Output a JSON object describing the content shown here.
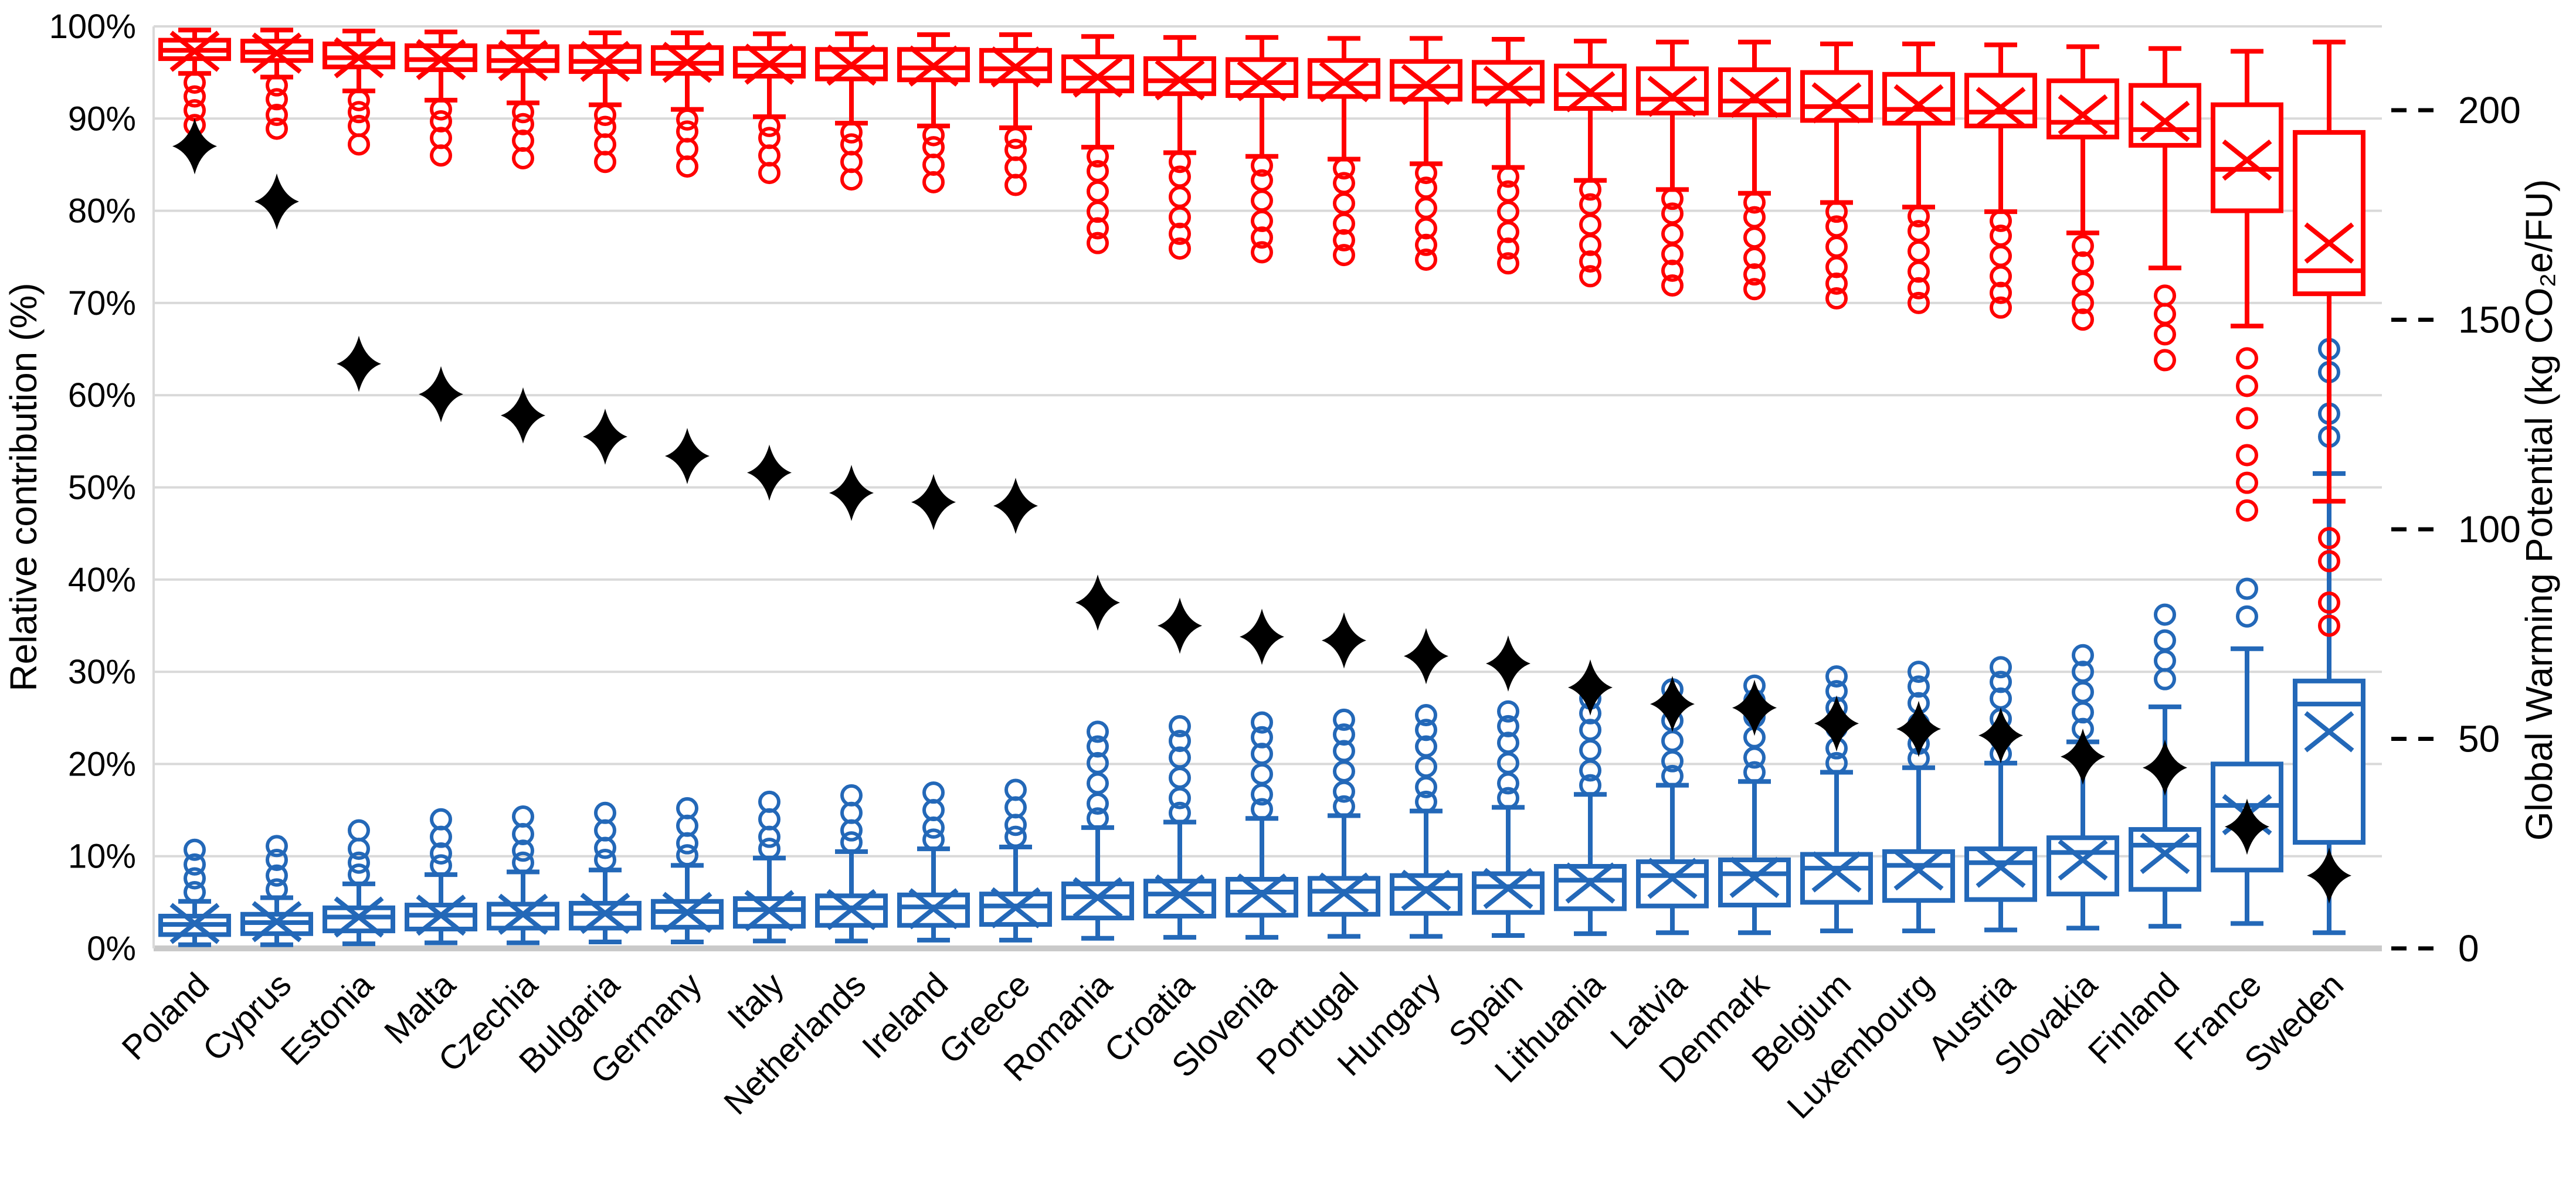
{
  "chart_data": {
    "type": "box",
    "title": "",
    "grid": true,
    "legend": "none",
    "colors": {
      "red_series": "#FF0000",
      "blue_series": "#2368B8",
      "diamond": "#000000",
      "gridline": "#D9D9D9",
      "baseline": "#C9C9C9"
    },
    "left_axis": {
      "label": "Relative contribution (%)",
      "min": 0,
      "max": 100,
      "tick_values": [
        0,
        10,
        20,
        30,
        40,
        50,
        60,
        70,
        80,
        90,
        100
      ],
      "tick_labels": [
        "0%",
        "10%",
        "20%",
        "30%",
        "40%",
        "50%",
        "60%",
        "70%",
        "80%",
        "90%",
        "100%"
      ]
    },
    "right_axis": {
      "label": "Global Warming Potential (kg CO₂e/FU)",
      "min": 0,
      "max": 220,
      "units_per_left_pct": 2.2,
      "tick_values": [
        200,
        150,
        100,
        50,
        0
      ],
      "tick_labels": [
        "200",
        "150",
        "100",
        "50",
        "0"
      ]
    },
    "series": [
      {
        "name": "Red box plots (relative contribution, upper group)",
        "color": "#FF0000"
      },
      {
        "name": "Blue box plots (relative contribution, lower group)",
        "color": "#2368B8"
      },
      {
        "name": "Black diamonds (Global Warming Potential, right axis)",
        "color": "#000000"
      }
    ],
    "countries": [
      {
        "name": "Poland",
        "red": {
          "low": 94.9,
          "q1": 96.5,
          "median": 97.4,
          "q3": 98.5,
          "high": 99.6,
          "mean": 97.3,
          "outliers": [
            93.9,
            92.4,
            90.9,
            89.3
          ]
        },
        "blue": {
          "low": 0.4,
          "q1": 1.5,
          "median": 2.6,
          "q3": 3.5,
          "high": 5.1,
          "mean": 2.7,
          "outliers": [
            6.1,
            7.6,
            9.1,
            10.7
          ]
        },
        "gwp_share_pct": 87.0,
        "gwp_value": 191
      },
      {
        "name": "Cyprus",
        "red": {
          "low": 94.5,
          "q1": 96.3,
          "median": 97.2,
          "q3": 98.4,
          "high": 99.6,
          "mean": 97.1,
          "outliers": [
            93.6,
            92.1,
            90.4,
            88.9
          ]
        },
        "blue": {
          "low": 0.4,
          "q1": 1.6,
          "median": 2.8,
          "q3": 3.7,
          "high": 5.5,
          "mean": 2.9,
          "outliers": [
            6.4,
            7.9,
            9.6,
            11.1
          ]
        },
        "gwp_share_pct": 81.0,
        "gwp_value": 178
      },
      {
        "name": "Estonia",
        "red": {
          "low": 93.0,
          "q1": 95.6,
          "median": 96.6,
          "q3": 98.1,
          "high": 99.5,
          "mean": 96.6,
          "outliers": [
            92.0,
            90.7,
            89.2,
            87.2
          ]
        },
        "blue": {
          "low": 0.5,
          "q1": 1.9,
          "median": 3.4,
          "q3": 4.4,
          "high": 7.0,
          "mean": 3.4,
          "outliers": [
            8.0,
            9.3,
            10.8,
            12.8
          ]
        },
        "gwp_share_pct": 63.4,
        "gwp_value": 139
      },
      {
        "name": "Malta",
        "red": {
          "low": 92.0,
          "q1": 95.3,
          "median": 96.4,
          "q3": 97.9,
          "high": 99.4,
          "mean": 96.4,
          "outliers": [
            91.0,
            89.7,
            87.9,
            86.0
          ]
        },
        "blue": {
          "low": 0.6,
          "q1": 2.1,
          "median": 3.6,
          "q3": 4.7,
          "high": 8.0,
          "mean": 3.6,
          "outliers": [
            9.0,
            10.3,
            12.1,
            14.0
          ]
        },
        "gwp_share_pct": 60.1,
        "gwp_value": 132
      },
      {
        "name": "Czechia",
        "red": {
          "low": 91.7,
          "q1": 95.2,
          "median": 96.3,
          "q3": 97.8,
          "high": 99.4,
          "mean": 96.3,
          "outliers": [
            90.7,
            89.4,
            87.6,
            85.7
          ]
        },
        "blue": {
          "low": 0.6,
          "q1": 2.2,
          "median": 3.7,
          "q3": 4.8,
          "high": 8.3,
          "mean": 3.7,
          "outliers": [
            9.3,
            10.6,
            12.4,
            14.3
          ]
        },
        "gwp_share_pct": 57.8,
        "gwp_value": 127
      },
      {
        "name": "Bulgaria",
        "red": {
          "low": 91.5,
          "q1": 95.1,
          "median": 96.2,
          "q3": 97.8,
          "high": 99.3,
          "mean": 96.2,
          "outliers": [
            90.4,
            89.1,
            87.2,
            85.3
          ]
        },
        "blue": {
          "low": 0.7,
          "q1": 2.2,
          "median": 3.8,
          "q3": 4.9,
          "high": 8.5,
          "mean": 3.8,
          "outliers": [
            9.6,
            10.9,
            12.8,
            14.7
          ]
        },
        "gwp_share_pct": 55.5,
        "gwp_value": 122
      },
      {
        "name": "Germany",
        "red": {
          "low": 91.0,
          "q1": 94.9,
          "median": 96.0,
          "q3": 97.7,
          "high": 99.3,
          "mean": 96.1,
          "outliers": [
            89.9,
            88.6,
            86.7,
            84.8
          ]
        },
        "blue": {
          "low": 0.7,
          "q1": 2.3,
          "median": 4.0,
          "q3": 5.1,
          "high": 9.0,
          "mean": 3.9,
          "outliers": [
            10.1,
            11.4,
            13.3,
            15.2
          ]
        },
        "gwp_share_pct": 53.4,
        "gwp_value": 117
      },
      {
        "name": "Italy",
        "red": {
          "low": 90.2,
          "q1": 94.6,
          "median": 95.8,
          "q3": 97.6,
          "high": 99.2,
          "mean": 95.9,
          "outliers": [
            89.2,
            87.9,
            86.0,
            84.1
          ]
        },
        "blue": {
          "low": 0.8,
          "q1": 2.4,
          "median": 4.2,
          "q3": 5.4,
          "high": 9.8,
          "mean": 4.1,
          "outliers": [
            10.8,
            12.1,
            14.0,
            15.9
          ]
        },
        "gwp_share_pct": 51.6,
        "gwp_value": 114
      },
      {
        "name": "Netherlands",
        "red": {
          "low": 89.5,
          "q1": 94.3,
          "median": 95.6,
          "q3": 97.5,
          "high": 99.2,
          "mean": 95.8,
          "outliers": [
            88.5,
            87.2,
            85.3,
            83.4
          ]
        },
        "blue": {
          "low": 0.8,
          "q1": 2.5,
          "median": 4.4,
          "q3": 5.7,
          "high": 10.5,
          "mean": 4.2,
          "outliers": [
            11.5,
            12.8,
            14.7,
            16.6
          ]
        },
        "gwp_share_pct": 49.4,
        "gwp_value": 109
      },
      {
        "name": "Ireland",
        "red": {
          "low": 89.2,
          "q1": 94.2,
          "median": 95.5,
          "q3": 97.5,
          "high": 99.1,
          "mean": 95.7,
          "outliers": [
            88.2,
            86.9,
            85.0,
            83.1
          ]
        },
        "blue": {
          "low": 0.9,
          "q1": 2.5,
          "median": 4.5,
          "q3": 5.8,
          "high": 10.8,
          "mean": 4.3,
          "outliers": [
            11.8,
            13.1,
            15.0,
            16.9
          ]
        },
        "gwp_share_pct": 48.4,
        "gwp_value": 106
      },
      {
        "name": "Greece",
        "red": {
          "low": 89.0,
          "q1": 94.1,
          "median": 95.4,
          "q3": 97.4,
          "high": 99.1,
          "mean": 95.6,
          "outliers": [
            87.9,
            86.6,
            84.7,
            82.8
          ]
        },
        "blue": {
          "low": 0.9,
          "q1": 2.6,
          "median": 4.6,
          "q3": 5.9,
          "high": 11.0,
          "mean": 4.4,
          "outliers": [
            12.1,
            13.4,
            15.3,
            17.2
          ]
        },
        "gwp_share_pct": 48.0,
        "gwp_value": 106
      },
      {
        "name": "Romania",
        "red": {
          "low": 86.9,
          "q1": 93.0,
          "median": 94.4,
          "q3": 96.7,
          "high": 98.9,
          "mean": 94.5,
          "outliers": [
            85.9,
            84.3,
            82.1,
            79.9,
            78.1,
            76.5
          ]
        },
        "blue": {
          "low": 1.1,
          "q1": 3.3,
          "median": 5.6,
          "q3": 7.0,
          "high": 13.1,
          "mean": 5.5,
          "outliers": [
            14.1,
            15.7,
            17.9,
            20.1,
            21.9,
            23.5
          ]
        },
        "gwp_share_pct": 37.5,
        "gwp_value": 83
      },
      {
        "name": "Croatia",
        "red": {
          "low": 86.3,
          "q1": 92.7,
          "median": 94.1,
          "q3": 96.5,
          "high": 98.8,
          "mean": 94.2,
          "outliers": [
            85.3,
            83.7,
            81.5,
            79.3,
            77.5,
            75.9
          ]
        },
        "blue": {
          "low": 1.2,
          "q1": 3.5,
          "median": 5.9,
          "q3": 7.3,
          "high": 13.7,
          "mean": 5.8,
          "outliers": [
            14.7,
            16.3,
            18.5,
            20.7,
            22.5,
            24.1
          ]
        },
        "gwp_share_pct": 35.0,
        "gwp_value": 77
      },
      {
        "name": "Slovenia",
        "red": {
          "low": 85.9,
          "q1": 92.5,
          "median": 93.9,
          "q3": 96.4,
          "high": 98.8,
          "mean": 94.1,
          "outliers": [
            84.9,
            83.3,
            81.1,
            78.9,
            77.1,
            75.5
          ]
        },
        "blue": {
          "low": 1.2,
          "q1": 3.6,
          "median": 6.1,
          "q3": 7.5,
          "high": 14.1,
          "mean": 5.9,
          "outliers": [
            15.1,
            16.7,
            18.9,
            21.1,
            22.9,
            24.5
          ]
        },
        "gwp_share_pct": 33.8,
        "gwp_value": 74
      },
      {
        "name": "Portugal",
        "red": {
          "low": 85.6,
          "q1": 92.4,
          "median": 93.8,
          "q3": 96.3,
          "high": 98.7,
          "mean": 94.0,
          "outliers": [
            84.6,
            83.0,
            80.8,
            78.6,
            76.8,
            75.2
          ]
        },
        "blue": {
          "low": 1.3,
          "q1": 3.7,
          "median": 6.2,
          "q3": 7.6,
          "high": 14.4,
          "mean": 6.0,
          "outliers": [
            15.4,
            17.0,
            19.2,
            21.4,
            23.2,
            24.8
          ]
        },
        "gwp_share_pct": 33.4,
        "gwp_value": 73
      },
      {
        "name": "Hungary",
        "red": {
          "low": 85.1,
          "q1": 92.1,
          "median": 93.5,
          "q3": 96.2,
          "high": 98.7,
          "mean": 93.7,
          "outliers": [
            84.1,
            82.5,
            80.3,
            78.1,
            76.3,
            74.7
          ]
        },
        "blue": {
          "low": 1.3,
          "q1": 3.8,
          "median": 6.5,
          "q3": 7.9,
          "high": 14.9,
          "mean": 6.3,
          "outliers": [
            15.9,
            17.5,
            19.7,
            21.9,
            23.7,
            25.3
          ]
        },
        "gwp_share_pct": 31.7,
        "gwp_value": 70
      },
      {
        "name": "Spain",
        "red": {
          "low": 84.7,
          "q1": 91.9,
          "median": 93.3,
          "q3": 96.1,
          "high": 98.6,
          "mean": 93.5,
          "outliers": [
            83.7,
            82.1,
            79.9,
            77.7,
            75.9,
            74.3
          ]
        },
        "blue": {
          "low": 1.4,
          "q1": 3.9,
          "median": 6.7,
          "q3": 8.1,
          "high": 15.3,
          "mean": 6.5,
          "outliers": [
            16.3,
            17.9,
            20.1,
            22.3,
            24.1,
            25.7
          ]
        },
        "gwp_share_pct": 30.9,
        "gwp_value": 68
      },
      {
        "name": "Lithuania",
        "red": {
          "low": 83.3,
          "q1": 91.1,
          "median": 92.6,
          "q3": 95.7,
          "high": 98.4,
          "mean": 92.9,
          "outliers": [
            82.3,
            80.7,
            78.5,
            76.3,
            74.5,
            72.9
          ]
        },
        "blue": {
          "low": 1.6,
          "q1": 4.3,
          "median": 7.4,
          "q3": 8.9,
          "high": 16.7,
          "mean": 7.1,
          "outliers": [
            17.7,
            19.3,
            21.5,
            23.7,
            25.5,
            27.1
          ]
        },
        "gwp_share_pct": 28.3,
        "gwp_value": 62
      },
      {
        "name": "Latvia",
        "red": {
          "low": 82.3,
          "q1": 90.6,
          "median": 92.1,
          "q3": 95.4,
          "high": 98.3,
          "mean": 92.4,
          "outliers": [
            81.3,
            79.7,
            77.5,
            75.3,
            73.5,
            71.9
          ]
        },
        "blue": {
          "low": 1.7,
          "q1": 4.6,
          "median": 7.9,
          "q3": 9.4,
          "high": 17.7,
          "mean": 7.6,
          "outliers": [
            18.7,
            20.3,
            22.5,
            24.7,
            26.5,
            28.1
          ]
        },
        "gwp_share_pct": 26.5,
        "gwp_value": 58
      },
      {
        "name": "Denmark",
        "red": {
          "low": 81.9,
          "q1": 90.4,
          "median": 91.9,
          "q3": 95.3,
          "high": 98.3,
          "mean": 92.3,
          "outliers": [
            80.9,
            79.3,
            77.1,
            74.9,
            73.1,
            71.5
          ]
        },
        "blue": {
          "low": 1.7,
          "q1": 4.7,
          "median": 8.1,
          "q3": 9.6,
          "high": 18.1,
          "mean": 7.7,
          "outliers": [
            19.1,
            20.7,
            22.9,
            25.1,
            26.9,
            28.5
          ]
        },
        "gwp_share_pct": 26.1,
        "gwp_value": 57
      },
      {
        "name": "Belgium",
        "red": {
          "low": 80.9,
          "q1": 89.8,
          "median": 91.3,
          "q3": 95.0,
          "high": 98.1,
          "mean": 91.7,
          "outliers": [
            79.9,
            78.3,
            76.1,
            73.9,
            72.1,
            70.5
          ]
        },
        "blue": {
          "low": 1.9,
          "q1": 5.0,
          "median": 8.7,
          "q3": 10.2,
          "high": 19.1,
          "mean": 8.3,
          "outliers": [
            20.1,
            21.7,
            23.9,
            26.1,
            27.9,
            29.5
          ]
        },
        "gwp_share_pct": 24.4,
        "gwp_value": 54
      },
      {
        "name": "Luxembourg",
        "red": {
          "low": 80.4,
          "q1": 89.5,
          "median": 91.0,
          "q3": 94.8,
          "high": 98.1,
          "mean": 91.5,
          "outliers": [
            79.4,
            77.8,
            75.6,
            73.4,
            71.6,
            70.0
          ]
        },
        "blue": {
          "low": 1.9,
          "q1": 5.2,
          "median": 9.0,
          "q3": 10.5,
          "high": 19.6,
          "mean": 8.5,
          "outliers": [
            20.6,
            22.2,
            24.4,
            26.6,
            28.4,
            30.0
          ]
        },
        "gwp_share_pct": 23.8,
        "gwp_value": 52
      },
      {
        "name": "Austria",
        "red": {
          "low": 79.9,
          "q1": 89.2,
          "median": 90.7,
          "q3": 94.7,
          "high": 98.0,
          "mean": 91.2,
          "outliers": [
            78.9,
            77.3,
            75.1,
            72.9,
            71.1,
            69.5
          ]
        },
        "blue": {
          "low": 2.0,
          "q1": 5.3,
          "median": 9.3,
          "q3": 10.8,
          "high": 20.1,
          "mean": 8.8,
          "outliers": [
            21.1,
            22.7,
            24.9,
            27.1,
            28.9,
            30.5
          ]
        },
        "gwp_share_pct": 23.1,
        "gwp_value": 51
      },
      {
        "name": "Slovakia",
        "red": {
          "low": 77.6,
          "q1": 88.0,
          "median": 89.6,
          "q3": 94.1,
          "high": 97.8,
          "mean": 90.4,
          "outliers": [
            76.2,
            74.4,
            72.2,
            70.0,
            68.2
          ]
        },
        "blue": {
          "low": 2.2,
          "q1": 5.9,
          "median": 10.4,
          "q3": 12.0,
          "high": 22.4,
          "mean": 9.6,
          "outliers": [
            23.8,
            25.6,
            27.8,
            30.0,
            31.8
          ]
        },
        "gwp_share_pct": 20.8,
        "gwp_value": 46
      },
      {
        "name": "Finland",
        "red": {
          "low": 73.8,
          "q1": 87.1,
          "median": 88.8,
          "q3": 93.6,
          "high": 97.6,
          "mean": 89.7,
          "outliers": [
            70.8,
            68.8,
            66.6,
            63.8
          ]
        },
        "blue": {
          "low": 2.4,
          "q1": 6.4,
          "median": 11.2,
          "q3": 12.9,
          "high": 26.2,
          "mean": 10.3,
          "outliers": [
            29.2,
            31.2,
            33.4,
            36.2
          ]
        },
        "gwp_share_pct": 19.6,
        "gwp_value": 43
      },
      {
        "name": "France",
        "red": {
          "low": 67.5,
          "q1": 80.0,
          "median": 84.5,
          "q3": 91.5,
          "high": 97.3,
          "mean": 85.5,
          "outliers": [
            64.0,
            61.0,
            57.5,
            53.5,
            50.5,
            47.5
          ]
        },
        "blue": {
          "low": 2.7,
          "q1": 8.5,
          "median": 15.5,
          "q3": 20.0,
          "high": 32.5,
          "mean": 14.5,
          "outliers": [
            36.0,
            39.0
          ]
        },
        "gwp_share_pct": 13.2,
        "gwp_value": 29
      },
      {
        "name": "Sweden",
        "red": {
          "low": 48.5,
          "q1": 71.0,
          "median": 73.5,
          "q3": 88.5,
          "high": 98.3,
          "mean": 76.5,
          "outliers": [
            44.5,
            42.0,
            37.5,
            35.0
          ]
        },
        "blue": {
          "low": 1.7,
          "q1": 11.5,
          "median": 26.5,
          "q3": 29.0,
          "high": 51.5,
          "mean": 23.5,
          "outliers": [
            55.5,
            58.0,
            62.5,
            65.0
          ]
        },
        "gwp_share_pct": 7.9,
        "gwp_value": 17
      }
    ]
  }
}
